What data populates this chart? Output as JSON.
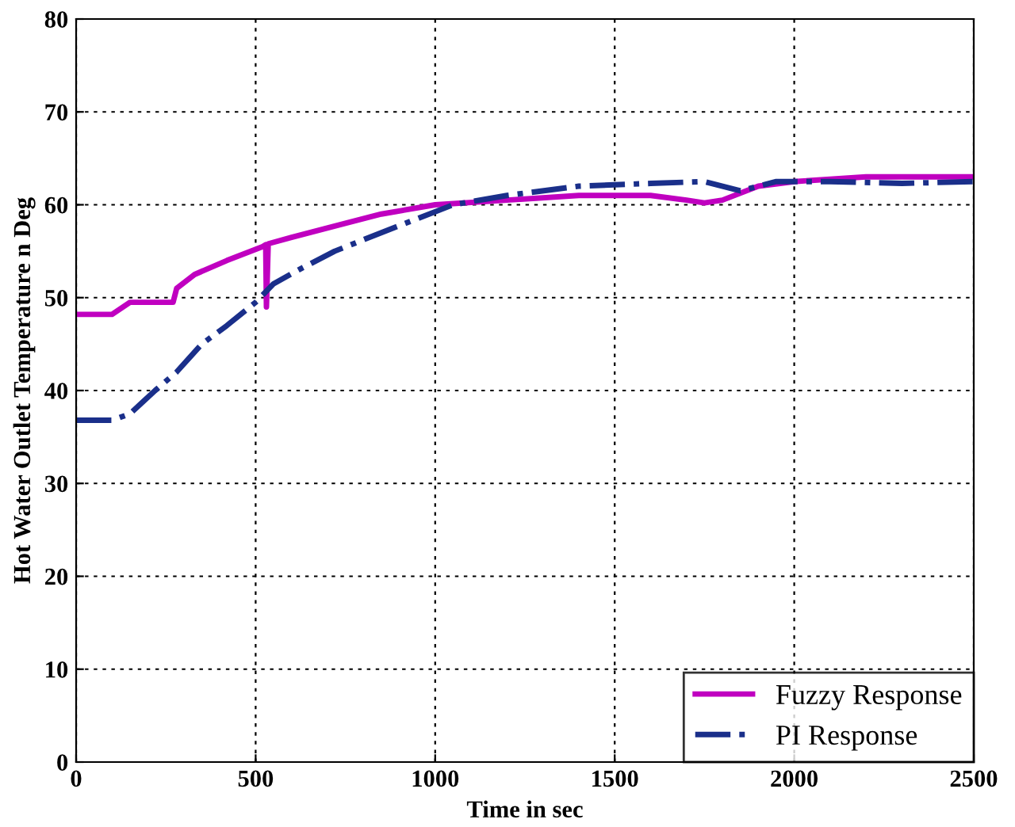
{
  "chart_data": {
    "type": "line",
    "xlabel": "Time in sec",
    "ylabel": "Hot Water Outlet Temperature n Deg",
    "xlim": [
      0,
      2500
    ],
    "ylim": [
      0,
      80
    ],
    "xticks": [
      0,
      500,
      1000,
      1500,
      2000,
      2500
    ],
    "yticks": [
      0,
      10,
      20,
      30,
      40,
      50,
      60,
      70,
      80
    ],
    "grid": true,
    "legend": "bottom right",
    "series": [
      {
        "name": "Fuzzy Response",
        "color": "#c000c0",
        "line_style": "solid",
        "x": [
          0,
          100,
          150,
          200,
          270,
          280,
          330,
          420,
          520,
          528,
          530,
          535,
          600,
          750,
          850,
          1000,
          1200,
          1400,
          1600,
          1700,
          1750,
          1800,
          1900,
          2000,
          2200,
          2500
        ],
        "values": [
          48.2,
          48.2,
          49.5,
          49.5,
          49.5,
          51,
          52.5,
          54,
          55.5,
          55.7,
          49,
          55.8,
          56.5,
          58,
          59,
          60,
          60.5,
          61,
          61,
          60.5,
          60.2,
          60.5,
          62,
          62.5,
          63,
          63
        ]
      },
      {
        "name": "PI Response",
        "color": "#1a2f8a",
        "line_style": "dashdot",
        "x": [
          0,
          100,
          150,
          220,
          280,
          350,
          420,
          500,
          550,
          620,
          720,
          850,
          950,
          1050,
          1200,
          1400,
          1600,
          1750,
          1850,
          1950,
          2100,
          2300,
          2500
        ],
        "values": [
          36.8,
          36.8,
          37.5,
          40,
          42,
          45,
          47,
          49.5,
          51.5,
          53,
          55,
          57,
          58.5,
          60,
          61,
          62,
          62.3,
          62.5,
          61.5,
          62.5,
          62.5,
          62.3,
          62.5
        ]
      }
    ]
  }
}
